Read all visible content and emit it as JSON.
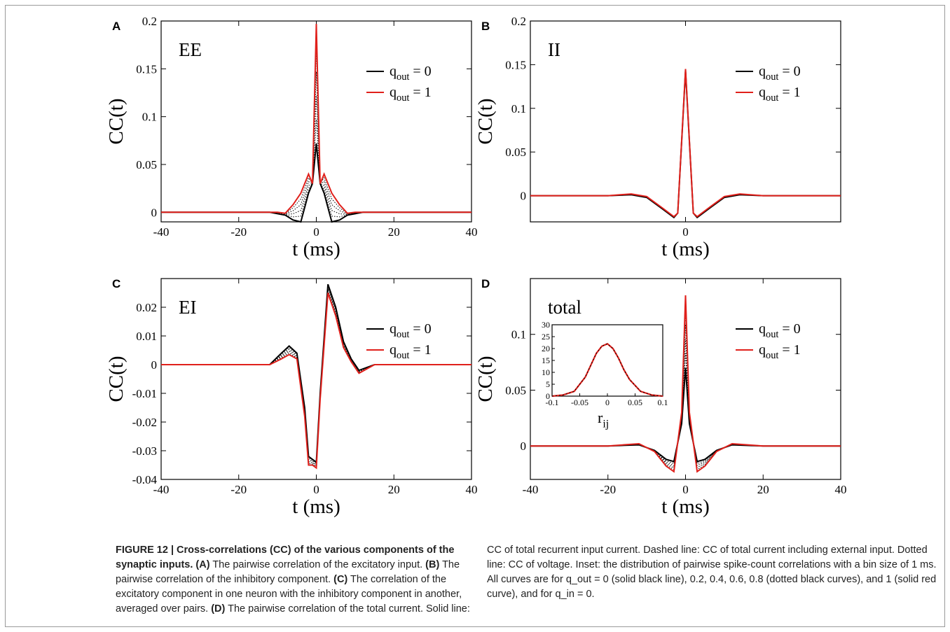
{
  "panels": [
    {
      "letter": "A",
      "label": "EE",
      "xlabel": "t (ms)",
      "ylabel": "CC(t)",
      "legend": [
        "q_out = 0",
        "q_out = 1"
      ],
      "xticks": [
        "-40",
        "-20",
        "0",
        "20",
        "40"
      ],
      "yticks": [
        "0",
        "0.05",
        "0.1",
        "0.15",
        "0.2"
      ]
    },
    {
      "letter": "B",
      "label": "II",
      "xlabel": "t (ms)",
      "ylabel": "CC(t)",
      "legend": [
        "q_out = 0",
        "q_out = 1"
      ],
      "xticks": [
        "0"
      ],
      "yticks": [
        "0",
        "0.05",
        "0.1",
        "0.15",
        "0.2"
      ]
    },
    {
      "letter": "C",
      "label": "EI",
      "xlabel": "t (ms)",
      "ylabel": "CC(t)",
      "legend": [
        "q_out = 0",
        "q_out = 1"
      ],
      "xticks": [
        "-40",
        "-20",
        "0",
        "20",
        "40"
      ],
      "yticks": [
        "-0.04",
        "-0.03",
        "-0.02",
        "-0.01",
        "0",
        "0.01",
        "0.02"
      ]
    },
    {
      "letter": "D",
      "label": "total",
      "xlabel": "t (ms)",
      "ylabel": "CC(t)",
      "legend": [
        "q_out = 0",
        "q_out = 1"
      ],
      "xticks": [
        "-40",
        "-20",
        "0",
        "20",
        "40"
      ],
      "yticks": [
        "0",
        "0.05",
        "0.1"
      ]
    }
  ],
  "inset": {
    "xlabel": "r_ij",
    "xticks": [
      "-0.1",
      "-0.05",
      "0",
      "0.05",
      "0.1"
    ],
    "yticks": [
      "0",
      "5",
      "10",
      "15",
      "20",
      "25",
      "30"
    ]
  },
  "caption": {
    "title": "FIGURE 12 | Cross-correlations (CC) of the various components of the synaptic inputs.",
    "a_tag": "(A)",
    "a_text": " The pairwise correlation of the excitatory input. ",
    "b_tag": "(B)",
    "b_text": " The pairwise correlation of the inhibitory component. ",
    "c_tag": "(C)",
    "c_text": " The correlation of the excitatory component in one neuron with the inhibitory component in another, averaged over pairs. ",
    "d_tag": "(D)",
    "d_text": " The pairwise correlation of the total current. Solid line:",
    "right_text": "CC of total recurrent input current. Dashed line: CC of total current including external input. Dotted line: CC of voltage. Inset: the distribution of pairwise spike-count correlations with a bin size of 1 ms. All curves are for q_out = 0 (solid black line), 0.2, 0.4, 0.6, 0.8 (dotted black curves), and 1 (solid red curve), and for q_in = 0."
  },
  "colors": {
    "q0": "#000000",
    "q1": "#e0201b",
    "dotted": "#000000"
  },
  "chart_data": [
    {
      "type": "line",
      "panel": "A",
      "title": "EE",
      "xlabel": "t (ms)",
      "ylabel": "CC(t)",
      "xlim": [
        -40,
        40
      ],
      "ylim": [
        -0.01,
        0.2
      ],
      "series": [
        {
          "name": "q_out = 0",
          "x": [
            -40,
            -30,
            -20,
            -12,
            -8,
            -6,
            -4,
            -2,
            -1,
            0,
            1,
            2,
            4,
            6,
            8,
            12,
            20,
            30,
            40
          ],
          "y": [
            0,
            0,
            0,
            0,
            -0.003,
            -0.008,
            -0.01,
            0.02,
            0.03,
            0.072,
            0.03,
            0.02,
            -0.01,
            -0.008,
            -0.003,
            0,
            0,
            0,
            0
          ]
        },
        {
          "name": "q_out = 1",
          "x": [
            -40,
            -30,
            -20,
            -10,
            -8,
            -6,
            -4,
            -2,
            -1,
            0,
            1,
            2,
            4,
            6,
            8,
            10,
            20,
            30,
            40
          ],
          "y": [
            0,
            0,
            0,
            0,
            -0.001,
            0.008,
            0.02,
            0.04,
            0.03,
            0.197,
            0.03,
            0.04,
            0.02,
            0.008,
            -0.001,
            0,
            0,
            0,
            0
          ]
        }
      ]
    },
    {
      "type": "line",
      "panel": "B",
      "title": "II",
      "xlabel": "t (ms)",
      "ylabel": "CC(t)",
      "xlim": [
        -40,
        40
      ],
      "ylim": [
        -0.03,
        0.2
      ],
      "series": [
        {
          "name": "q_out = 0",
          "x": [
            -40,
            -20,
            -14,
            -10,
            -6,
            -3,
            -2,
            0,
            2,
            3,
            6,
            10,
            14,
            20,
            40
          ],
          "y": [
            0,
            0,
            0.001,
            -0.002,
            -0.015,
            -0.025,
            -0.02,
            0.143,
            -0.02,
            -0.025,
            -0.015,
            -0.002,
            0.001,
            0,
            0
          ]
        },
        {
          "name": "q_out = 1",
          "x": [
            -40,
            -20,
            -14,
            -10,
            -6,
            -3,
            -2,
            0,
            2,
            3,
            6,
            10,
            14,
            20,
            40
          ],
          "y": [
            0,
            0,
            0.002,
            -0.001,
            -0.014,
            -0.024,
            -0.02,
            0.145,
            -0.02,
            -0.024,
            -0.014,
            -0.001,
            0.002,
            0,
            0
          ]
        }
      ]
    },
    {
      "type": "line",
      "panel": "C",
      "title": "EI",
      "xlabel": "t (ms)",
      "ylabel": "CC(t)",
      "xlim": [
        -40,
        40
      ],
      "ylim": [
        -0.04,
        0.03
      ],
      "series": [
        {
          "name": "q_out = 0",
          "x": [
            -40,
            -20,
            -12,
            -9,
            -7,
            -5,
            -3,
            -2,
            -1,
            0,
            1,
            3,
            5,
            7,
            9,
            11,
            15,
            25,
            40
          ],
          "y": [
            0,
            0,
            0,
            0.004,
            0.0065,
            0.004,
            -0.015,
            -0.032,
            -0.033,
            -0.034,
            -0.01,
            0.028,
            0.02,
            0.008,
            0.002,
            -0.002,
            0,
            0,
            0
          ]
        },
        {
          "name": "q_out = 1",
          "x": [
            -40,
            -20,
            -12,
            -9,
            -7,
            -5,
            -3,
            -2,
            -1,
            0,
            1,
            3,
            5,
            7,
            9,
            11,
            15,
            25,
            40
          ],
          "y": [
            0,
            0,
            0,
            0.002,
            0.0035,
            0.002,
            -0.018,
            -0.035,
            -0.035,
            -0.036,
            -0.012,
            0.025,
            0.017,
            0.006,
            0.001,
            -0.003,
            0,
            0,
            0
          ]
        }
      ]
    },
    {
      "type": "line",
      "panel": "D",
      "title": "total",
      "xlabel": "t (ms)",
      "ylabel": "CC(t)",
      "xlim": [
        -40,
        40
      ],
      "ylim": [
        -0.03,
        0.15
      ],
      "series": [
        {
          "name": "q_out = 0",
          "x": [
            -40,
            -20,
            -12,
            -8,
            -5,
            -3,
            -1,
            0,
            1,
            3,
            5,
            8,
            12,
            20,
            40
          ],
          "y": [
            0,
            0,
            0.001,
            -0.004,
            -0.012,
            -0.014,
            0.02,
            0.07,
            0.02,
            -0.014,
            -0.012,
            -0.004,
            0.001,
            0,
            0
          ]
        },
        {
          "name": "q_out = 1",
          "x": [
            -40,
            -20,
            -12,
            -8,
            -5,
            -3,
            -1,
            0,
            1,
            3,
            5,
            8,
            12,
            20,
            40
          ],
          "y": [
            0,
            0,
            0.002,
            -0.005,
            -0.018,
            -0.023,
            0.03,
            0.135,
            0.03,
            -0.023,
            -0.018,
            -0.005,
            0.002,
            0,
            0
          ]
        }
      ]
    },
    {
      "type": "line",
      "panel": "D-inset",
      "xlabel": "r_ij",
      "xlim": [
        -0.1,
        0.1
      ],
      "ylim": [
        0,
        30
      ],
      "x": [
        -0.1,
        -0.08,
        -0.06,
        -0.04,
        -0.03,
        -0.02,
        -0.01,
        0,
        0.01,
        0.02,
        0.03,
        0.04,
        0.06,
        0.08,
        0.1
      ],
      "series": [
        {
          "values": [
            0,
            0.5,
            2,
            8,
            13,
            18,
            21,
            22,
            20,
            16,
            11,
            7,
            2,
            0.5,
            0
          ]
        }
      ]
    }
  ]
}
